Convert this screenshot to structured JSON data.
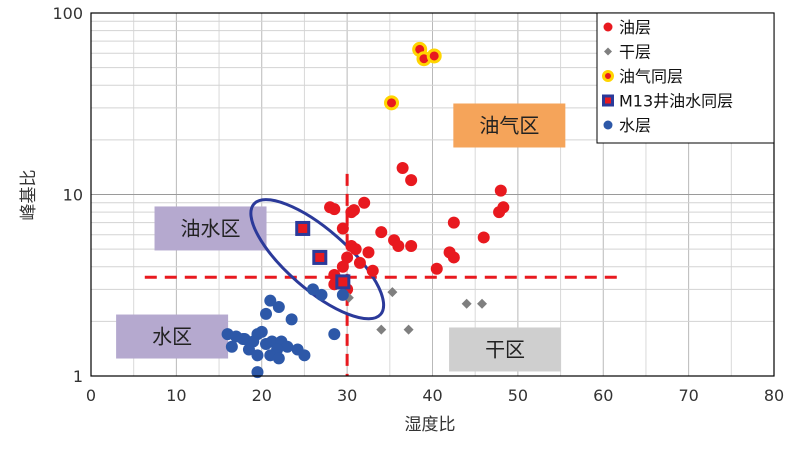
{
  "chart_data": {
    "type": "scatter",
    "xlabel": "湿度比",
    "ylabel": "峰基比",
    "xlim": [
      0,
      80
    ],
    "ylim": [
      1,
      100
    ],
    "y_scale": "log",
    "x_ticks": [
      0,
      10,
      20,
      30,
      40,
      50,
      60,
      70,
      80
    ],
    "y_ticks": [
      1,
      10,
      100
    ],
    "grid": true,
    "legend_position": "top-right",
    "series": [
      {
        "name": "油层",
        "marker": "circle",
        "color": "#e8191f",
        "points": [
          [
            28,
            8.5
          ],
          [
            28.5,
            8.3
          ],
          [
            29.5,
            6.5
          ],
          [
            30.5,
            8
          ],
          [
            30.8,
            8.2
          ],
          [
            32,
            9
          ],
          [
            36.5,
            14
          ],
          [
            37.5,
            12
          ],
          [
            48,
            10.5
          ],
          [
            48.3,
            8.5
          ],
          [
            47.8,
            8
          ],
          [
            42.5,
            7
          ],
          [
            34,
            6.2
          ],
          [
            35.5,
            5.6
          ],
          [
            36,
            5.2
          ],
          [
            37.5,
            5.2
          ],
          [
            30.5,
            5.2
          ],
          [
            31,
            5
          ],
          [
            32.5,
            4.8
          ],
          [
            30,
            4.5
          ],
          [
            29.5,
            4
          ],
          [
            28.5,
            3.6
          ],
          [
            31.5,
            4.2
          ],
          [
            33,
            3.8
          ],
          [
            40.5,
            3.9
          ],
          [
            42.5,
            4.5
          ],
          [
            46,
            5.8
          ],
          [
            42,
            4.8
          ],
          [
            28.5,
            3.2
          ],
          [
            30,
            3
          ]
        ]
      },
      {
        "name": "干层",
        "marker": "diamond",
        "color": "#7f7f7f",
        "points": [
          [
            30.2,
            2.7
          ],
          [
            35.3,
            2.9
          ],
          [
            34,
            1.8
          ],
          [
            37.2,
            1.8
          ],
          [
            44,
            2.5
          ],
          [
            45.8,
            2.5
          ]
        ]
      },
      {
        "name": "油气同层",
        "marker": "circle-ring",
        "color": "#e8191f",
        "ring_color": "#ffd500",
        "points": [
          [
            38.5,
            63
          ],
          [
            39,
            56
          ],
          [
            40.2,
            58
          ],
          [
            35.2,
            32
          ]
        ]
      },
      {
        "name": "M13井油水同层",
        "marker": "square",
        "color": "#e8191f",
        "border_color": "#2b3a9a",
        "points": [
          [
            24.8,
            6.5
          ],
          [
            26.8,
            4.5
          ],
          [
            29.5,
            3.3
          ]
        ]
      },
      {
        "name": "水层",
        "marker": "circle",
        "color": "#2d58a8",
        "points": [
          [
            21,
            2.6
          ],
          [
            22,
            2.4
          ],
          [
            23.5,
            2.05
          ],
          [
            20.5,
            2.2
          ],
          [
            16,
            1.7
          ],
          [
            17,
            1.65
          ],
          [
            18,
            1.6
          ],
          [
            19.5,
            1.7
          ],
          [
            20,
            1.75
          ],
          [
            21.2,
            1.55
          ],
          [
            22.3,
            1.55
          ],
          [
            23,
            1.45
          ],
          [
            21.8,
            1.4
          ],
          [
            20.5,
            1.5
          ],
          [
            19,
            1.55
          ],
          [
            18.5,
            1.4
          ],
          [
            16.5,
            1.45
          ],
          [
            17.8,
            1.6
          ],
          [
            24.2,
            1.4
          ],
          [
            25,
            1.3
          ],
          [
            21,
            1.3
          ],
          [
            19.5,
            1.3
          ],
          [
            22,
            1.25
          ],
          [
            19.5,
            1.05
          ],
          [
            26,
            3
          ],
          [
            27,
            2.8
          ],
          [
            28.5,
            1.7
          ],
          [
            29.5,
            2.8
          ]
        ]
      }
    ],
    "threshold_lines": {
      "vertical_x": 30,
      "horizontal_y": 3.5,
      "color": "#e8191f"
    },
    "ellipse": {
      "center": [
        26.5,
        4.4
      ],
      "color": "#2b3a9a"
    },
    "region_labels": [
      {
        "name": "油气区",
        "x": 49,
        "y": 24,
        "fill": "#f5a45a"
      },
      {
        "name": "油水区",
        "x": 14,
        "y": 6.5,
        "fill": "#b5a9cf"
      },
      {
        "name": "水区",
        "x": 9.5,
        "y": 1.65,
        "fill": "#b5a9cf"
      },
      {
        "name": "干区",
        "x": 48.5,
        "y": 1.4,
        "fill": "#cfcfcf"
      }
    ]
  }
}
